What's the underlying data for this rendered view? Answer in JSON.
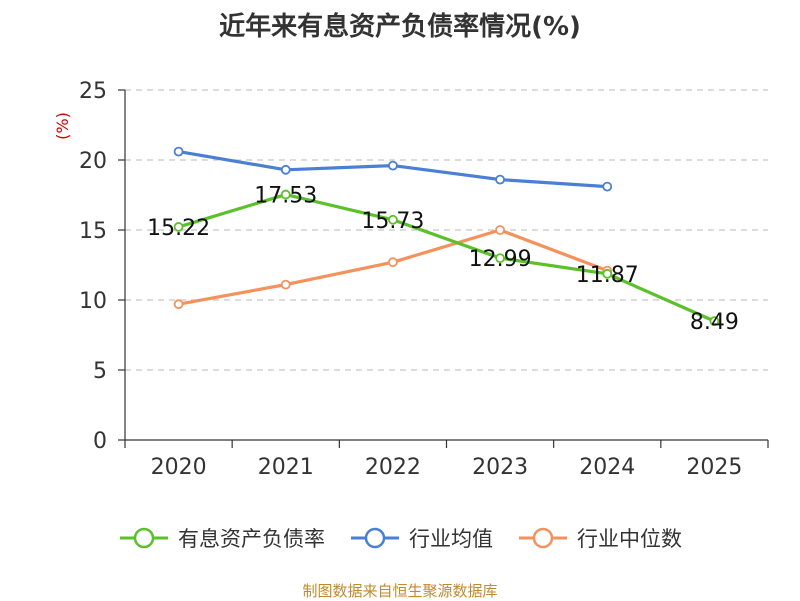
{
  "chart_data": {
    "type": "line",
    "title": "近年来有息资产负债率情况(%)",
    "ylabel": "(%)",
    "xlabel": "",
    "categories": [
      "2020",
      "2021",
      "2022",
      "2023",
      "2024",
      "2025"
    ],
    "ylim": [
      0,
      25
    ],
    "yticks": [
      0,
      5,
      10,
      15,
      20,
      25
    ],
    "grid": true,
    "legend_position": "bottom",
    "series": [
      {
        "name": "有息资产负债率",
        "color": "#5ac12a",
        "values": [
          15.22,
          17.53,
          15.73,
          12.99,
          11.87,
          8.49
        ],
        "show_labels": true
      },
      {
        "name": "行业均值",
        "color": "#4a7fd6",
        "values": [
          20.6,
          19.3,
          19.6,
          18.6,
          18.1,
          null
        ],
        "show_labels": false
      },
      {
        "name": "行业中位数",
        "color": "#f5925c",
        "values": [
          9.7,
          11.1,
          12.7,
          15.0,
          12.1,
          null
        ],
        "show_labels": false
      }
    ]
  },
  "source": "制图数据来自恒生聚源数据库"
}
